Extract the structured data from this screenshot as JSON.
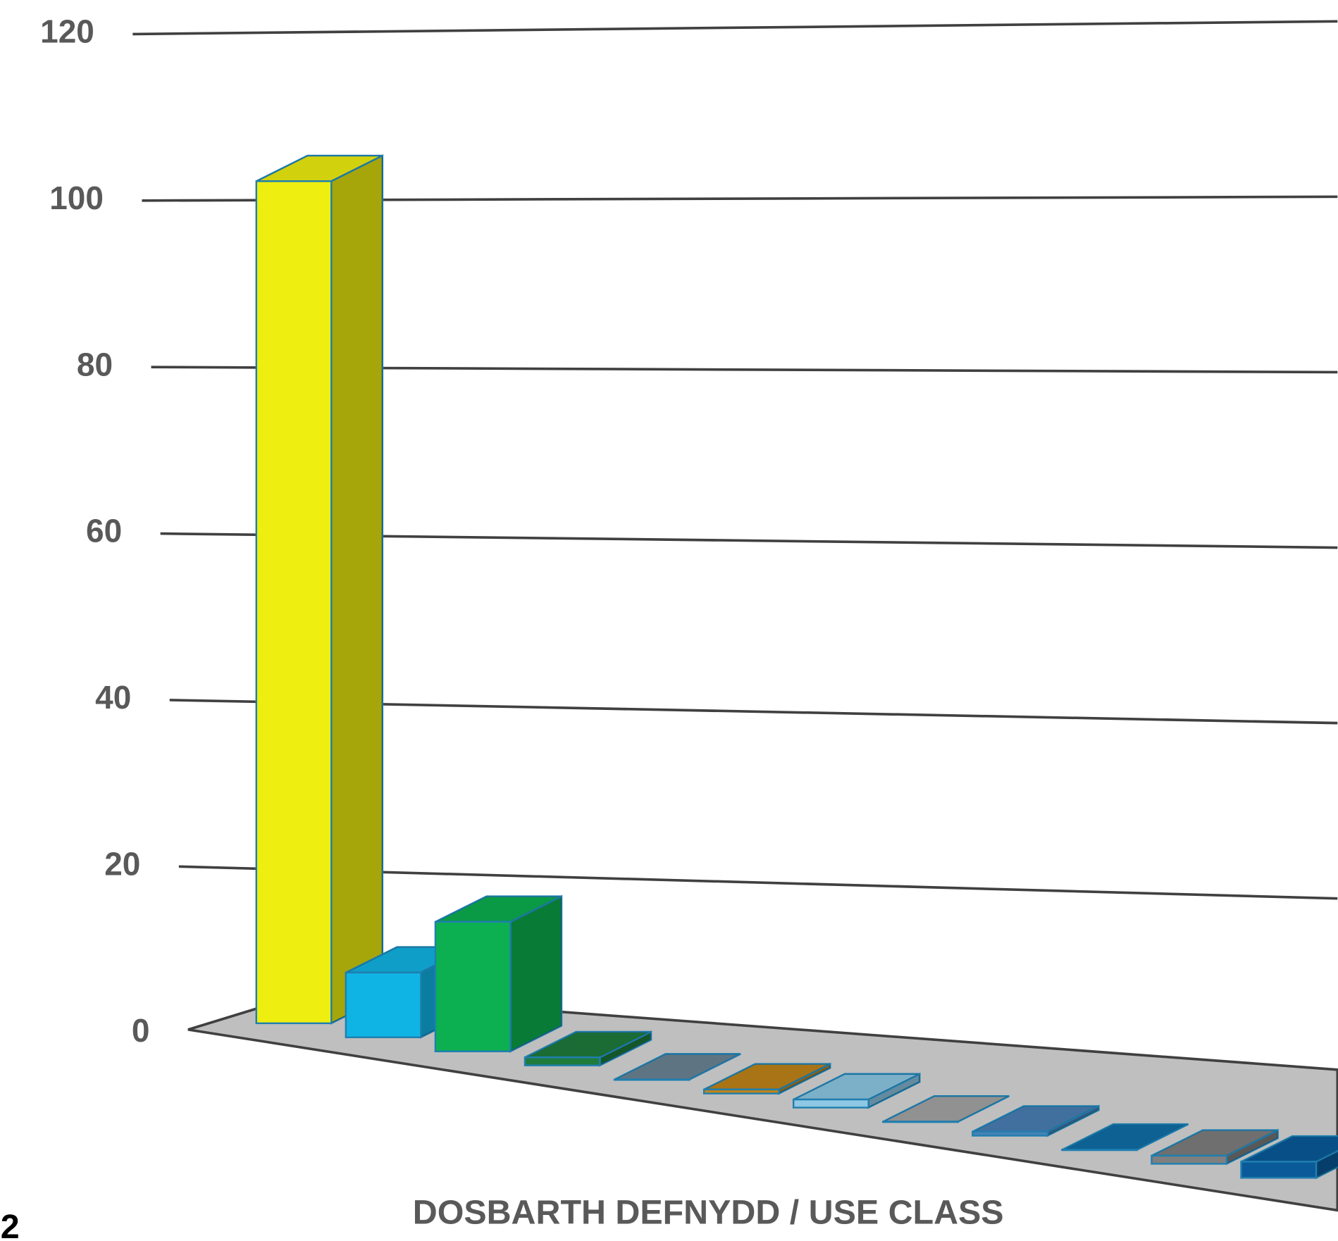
{
  "chart_data": {
    "type": "bar3d",
    "x_label": "DOSBARTH DEFNYDD / USE CLASS",
    "annotation": "2",
    "categories": [
      null,
      null,
      null,
      null,
      null,
      null,
      null,
      null,
      null,
      null,
      null,
      null
    ],
    "values": [
      104,
      8,
      16,
      1,
      0,
      0.5,
      1,
      0,
      0.5,
      0,
      1,
      2
    ],
    "colors": [
      "#eeee10",
      "#10b4e4",
      "#0cb050",
      "#1e7b3c",
      "#6d8596",
      "#c0851a",
      "#8ec8e4",
      "#a5a5a5",
      "#4a80b4",
      "#0f6fa8",
      "#7f7f7f",
      "#0a5a9a"
    ],
    "ylim": [
      0,
      120
    ],
    "yticks": [
      0,
      20,
      40,
      60,
      80,
      100,
      120
    ],
    "grid": true
  }
}
